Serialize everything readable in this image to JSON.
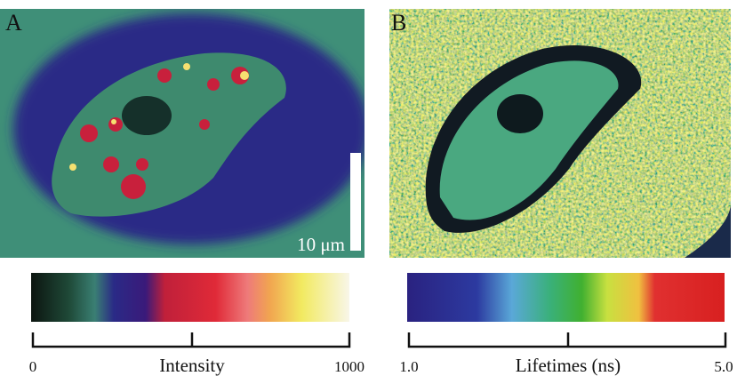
{
  "panels": [
    {
      "letter": "A",
      "scale_bar": "10 μm",
      "colorbar": {
        "title": "Intensity",
        "min_label": "0",
        "max_label": "1000"
      }
    },
    {
      "letter": "B",
      "colorbar": {
        "title": "Lifetimes (ns)",
        "min_label": "1.0",
        "max_label": "5.0"
      }
    }
  ]
}
